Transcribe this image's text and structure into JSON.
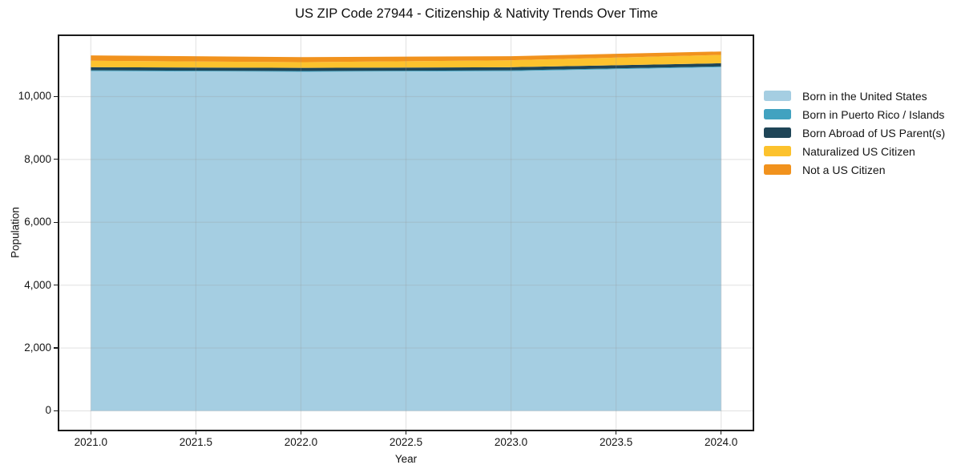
{
  "chart_data": {
    "type": "area",
    "stacked": true,
    "title": "US ZIP Code 27944 - Citizenship & Nativity Trends Over Time",
    "xlabel": "Year",
    "ylabel": "Population",
    "x": [
      2021,
      2022,
      2023,
      2024
    ],
    "series": [
      {
        "name": "Born in the United States",
        "color": "#a5cee2",
        "values": [
          10810,
          10790,
          10810,
          10935
        ]
      },
      {
        "name": "Born in Puerto Rico / Islands",
        "color": "#41a2c0",
        "values": [
          25,
          25,
          25,
          25
        ]
      },
      {
        "name": "Born Abroad of US Parent(s)",
        "color": "#1f4557",
        "values": [
          100,
          100,
          100,
          100
        ]
      },
      {
        "name": "Naturalized US Citizen",
        "color": "#fcc22d",
        "values": [
          205,
          180,
          220,
          265
        ]
      },
      {
        "name": "Not a US Citizen",
        "color": "#f1921d",
        "values": [
          170,
          160,
          130,
          110
        ]
      }
    ],
    "x_ticks": [
      "2021.0",
      "2021.5",
      "2022.0",
      "2022.5",
      "2023.0",
      "2023.5",
      "2024.0"
    ],
    "x_tick_values": [
      2021,
      2021.5,
      2022,
      2022.5,
      2023,
      2023.5,
      2024
    ],
    "y_ticks": [
      "0",
      "2,000",
      "4,000",
      "6,000",
      "8,000",
      "10,000"
    ],
    "y_tick_values": [
      0,
      2000,
      4000,
      6000,
      8000,
      10000
    ],
    "xlim": [
      2020.85,
      2024.15
    ],
    "ylim": [
      -600,
      11925
    ],
    "grid": true,
    "grid_color": "#999999",
    "grid_opacity": 0.25,
    "spine_color": "#1a1a1a",
    "legend_position": "outside-right"
  }
}
